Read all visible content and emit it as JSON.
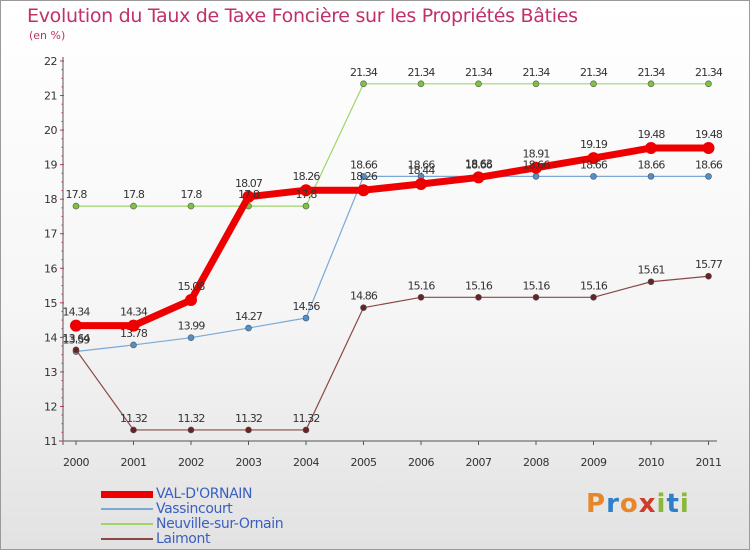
{
  "title": "Evolution du Taux de Taxe Foncière sur les Propriétés Bâties",
  "unit": "(en %)",
  "logo": {
    "text": "Proxiti",
    "colors": [
      "#e8862a",
      "#2f7fc8",
      "#e8862a",
      "#d03a2a",
      "#8ab83a",
      "#2f7fc8",
      "#8ab83a"
    ]
  },
  "chart_data": {
    "type": "line",
    "x": [
      2000,
      2001,
      2002,
      2003,
      2004,
      2005,
      2006,
      2007,
      2008,
      2009,
      2010,
      2011
    ],
    "ylim": [
      11,
      22
    ],
    "yticks": [
      11,
      12,
      13,
      14,
      15,
      16,
      17,
      18,
      19,
      20,
      21,
      22
    ],
    "grid": false,
    "legend_position": "bottom-left",
    "series": [
      {
        "name": "Neuville-sur-Ornain",
        "color": "#9ed66b",
        "marker": "#7cc43f",
        "width": 1.2,
        "r": 3,
        "values": [
          17.8,
          17.8,
          17.8,
          17.8,
          17.8,
          21.34,
          21.34,
          21.34,
          21.34,
          21.34,
          21.34,
          21.34
        ],
        "labels": [
          "17.8",
          "17.8",
          "17.8",
          "17.8",
          "17.8",
          "21.34",
          "21.34",
          "21.34",
          "21.34",
          "21.34",
          "21.34",
          "21.34"
        ]
      },
      {
        "name": "Vassincourt",
        "color": "#7aa9d6",
        "marker": "#4f8fcc",
        "width": 1.2,
        "r": 3,
        "values": [
          13.59,
          13.78,
          13.99,
          14.27,
          14.56,
          18.66,
          18.66,
          18.66,
          18.66,
          18.66,
          18.66,
          18.66
        ],
        "labels": [
          "13.59",
          "13.78",
          "13.99",
          "14.27",
          "14.56",
          "18.66",
          "18.66",
          "18.66",
          "18.66",
          "18.66",
          "18.66",
          "18.66"
        ]
      },
      {
        "name": "Laimont",
        "color": "#8a4848",
        "marker": "#6b2222",
        "width": 1.2,
        "r": 3,
        "values": [
          13.64,
          11.32,
          11.32,
          11.32,
          11.32,
          14.86,
          15.16,
          15.16,
          15.16,
          15.16,
          15.61,
          15.77
        ],
        "labels": [
          "13.64",
          "11.32",
          "11.32",
          "11.32",
          "11.32",
          "14.86",
          "15.16",
          "15.16",
          "15.16",
          "15.16",
          "15.61",
          "15.77"
        ]
      },
      {
        "name": "VAL-D'ORNAIN",
        "color": "#ee0000",
        "marker": "#ee0000",
        "width": 7,
        "r": 6,
        "values": [
          14.34,
          14.34,
          15.08,
          18.07,
          18.26,
          18.26,
          18.44,
          18.63,
          18.91,
          19.19,
          19.48,
          19.48
        ],
        "labels": [
          "14.34",
          "14.34",
          "15.08",
          "18.07",
          "18.26",
          "18.26",
          "18.44",
          "18.63",
          "18.91",
          "19.19",
          "19.48",
          "19.48"
        ]
      }
    ]
  },
  "legend": [
    {
      "name": "VAL-D'ORNAIN",
      "color": "#ee0000",
      "text_color": "#3a5fc0",
      "thickness": 7
    },
    {
      "name": "Vassincourt",
      "color": "#7aa9d6",
      "text_color": "#3a5fc0",
      "thickness": 2
    },
    {
      "name": "Neuville-sur-Ornain",
      "color": "#9ed66b",
      "text_color": "#3a5fc0",
      "thickness": 2
    },
    {
      "name": "Laimont",
      "color": "#8a4848",
      "text_color": "#3a5fc0",
      "thickness": 2
    }
  ]
}
